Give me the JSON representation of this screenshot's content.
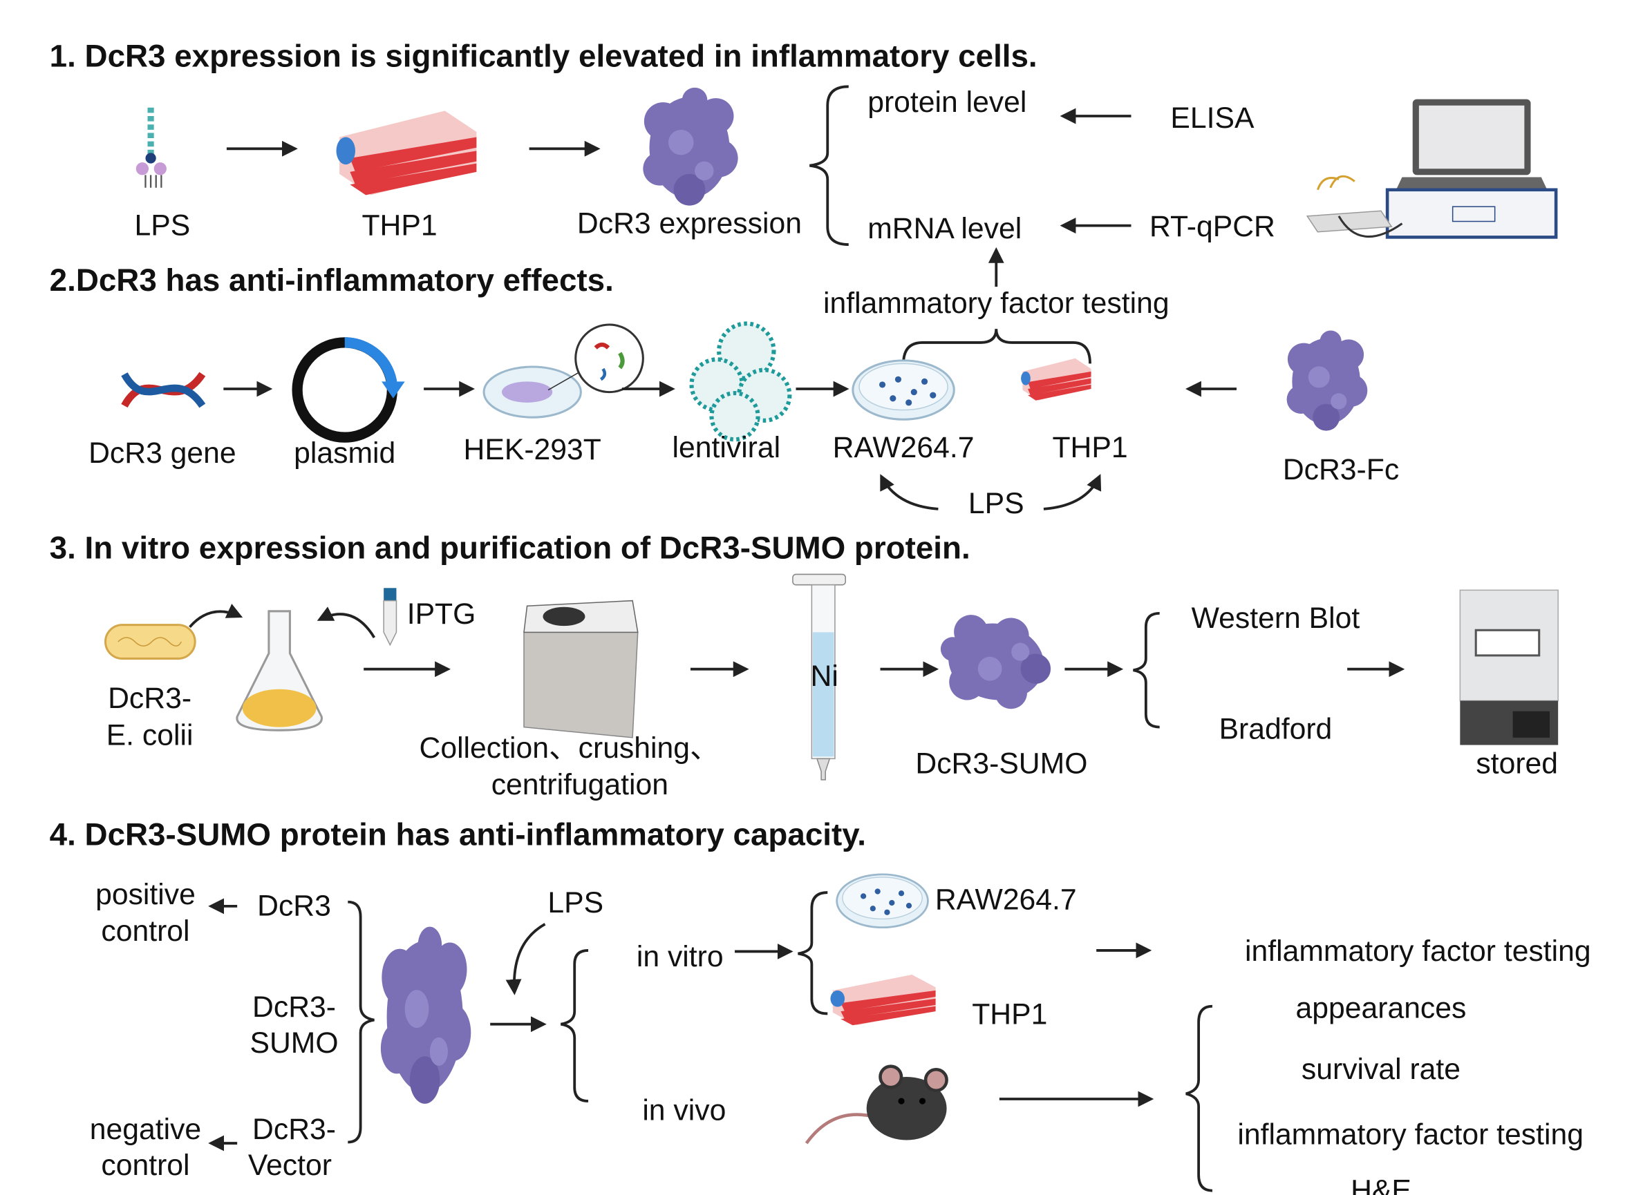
{
  "s1": {
    "title": "1. DcR3 expression is significantly elevated in inflammatory cells.",
    "lps": "LPS",
    "thp1": "THP1",
    "expr": "DcR3 expression",
    "protein": "protein level",
    "mrna": "mRNA level",
    "elisa": "ELISA",
    "rtqpcr": "RT-qPCR"
  },
  "s2": {
    "title": "2.DcR3 has anti-inflammatory effects.",
    "testing": "inflammatory factor testing",
    "gene": "DcR3 gene",
    "plasmid": "plasmid",
    "hek": "HEK-293T",
    "lenti": "lentiviral",
    "raw": "RAW264.7",
    "thp1": "THP1",
    "fc": "DcR3-Fc",
    "lps": "LPS"
  },
  "s3": {
    "title": "3. In vitro expression and purification of DcR3-SUMO protein.",
    "ecoli1": "DcR3-",
    "ecoli2": "E. colii",
    "iptg": "IPTG",
    "collect1": "Collection、crushing、",
    "collect2": "centrifugation",
    "ni": "Ni",
    "sumo": "DcR3-SUMO",
    "wb": "Western Blot",
    "bradford": "Bradford",
    "stored": "stored"
  },
  "s4": {
    "title": "4. DcR3-SUMO protein has anti-inflammatory capacity.",
    "pos1": "positive",
    "pos2": "control",
    "dcr3": "DcR3",
    "sumo1": "DcR3-",
    "sumo2": "SUMO",
    "neg1": "negative",
    "neg2": "control",
    "vec1": "DcR3-",
    "vec2": "Vector",
    "lps": "LPS",
    "invitro": "in vitro",
    "invivo": "in vivo",
    "raw": "RAW264.7",
    "thp1": "THP1",
    "testing": "inflammatory factor testing",
    "appear": "appearances",
    "survival": "survival rate",
    "testing2": "inflammatory factor testing",
    "he": "H&E"
  },
  "colors": {
    "protein": "#7b6fb5",
    "flask_red": "#e03a3e",
    "cap_blue": "#3a7fd0",
    "arrow": "#222222"
  }
}
